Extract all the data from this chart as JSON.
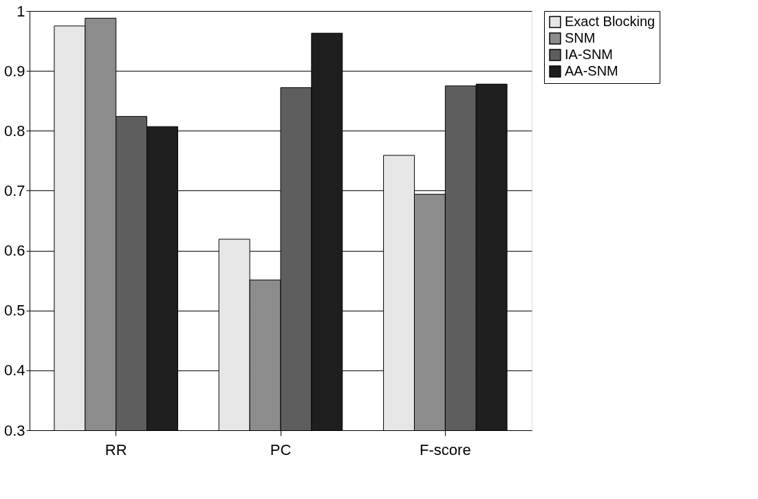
{
  "chart_data": {
    "type": "bar",
    "categories": [
      "RR",
      "PC",
      "F-score"
    ],
    "series": [
      {
        "name": "Exact Blocking",
        "color": "#e6e6e6",
        "values": [
          0.975,
          0.619,
          0.759
        ]
      },
      {
        "name": "SNM",
        "color": "#8c8c8c",
        "values": [
          0.988,
          0.551,
          0.694
        ]
      },
      {
        "name": "IA-SNM",
        "color": "#5e5e5e",
        "values": [
          0.824,
          0.872,
          0.875
        ]
      },
      {
        "name": "AA-SNM",
        "color": "#1e1e1e",
        "values": [
          0.807,
          0.963,
          0.878
        ]
      }
    ],
    "ylim": [
      0.3,
      1
    ],
    "yticks": [
      0.3,
      0.4,
      0.5,
      0.6,
      0.7,
      0.8,
      0.9,
      {
        "value": 1,
        "label": "1"
      }
    ],
    "grid": "y",
    "legend": "right"
  }
}
